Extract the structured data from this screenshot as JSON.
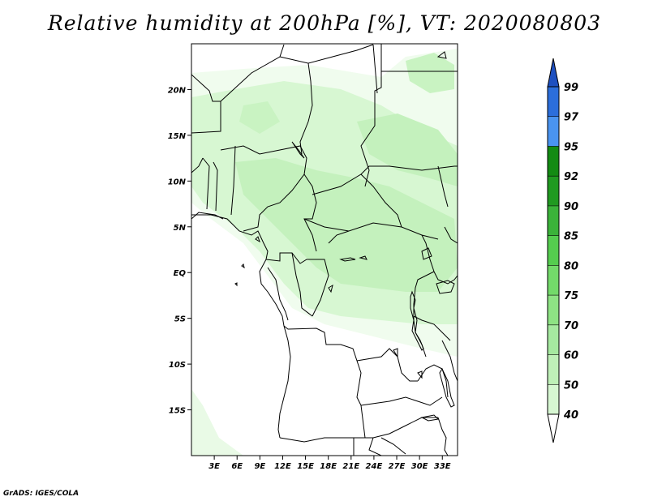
{
  "title": "Relative humidity at 200hPa [%], VT: 2020080803",
  "footer": "GrADS: IGES/COLA",
  "map": {
    "lon_range": [
      0,
      35
    ],
    "lat_range": [
      -20,
      25
    ],
    "lat_ticks": [
      "20N",
      "15N",
      "10N",
      "5N",
      "EQ",
      "5S",
      "10S",
      "15S"
    ],
    "lon_ticks": [
      "3E",
      "6E",
      "9E",
      "12E",
      "15E",
      "18E",
      "21E",
      "24E",
      "27E",
      "30E",
      "33E"
    ]
  },
  "colorbar": {
    "levels": [
      "40",
      "50",
      "60",
      "70",
      "75",
      "80",
      "85",
      "90",
      "92",
      "95",
      "97",
      "99"
    ],
    "colors": [
      "#f0fcee",
      "#d7f7d2",
      "#bff0b8",
      "#a6e9a0",
      "#8ee384",
      "#73da6a",
      "#55cd4f",
      "#3bb33a",
      "#209a21",
      "#138b13",
      "#4a94f0",
      "#2c6edb",
      "#1e50c0"
    ],
    "lower_end_color": "#ffffff"
  },
  "field": {
    "description_levels": "light green shading (40-60%) over central Africa"
  }
}
